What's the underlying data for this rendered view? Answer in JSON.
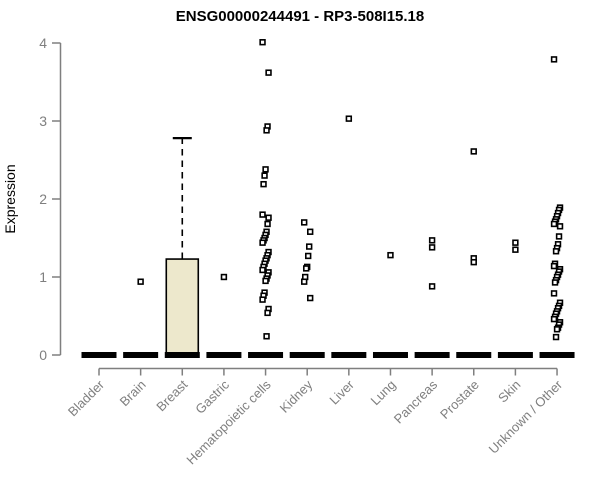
{
  "chart_data": {
    "type": "boxplot",
    "title": "ENSG00000244491 - RP3-508I15.18",
    "ylabel": "Expression",
    "xlabel": "",
    "ylim": [
      0,
      4
    ],
    "yticks": [
      0,
      1,
      2,
      3,
      4
    ],
    "grid": false,
    "legend": "none",
    "axis_color": "#7F7F7F",
    "data_color": "#000000",
    "box_fill": "#EDE8CC",
    "categories": [
      "Bladder",
      "Brain",
      "Breast",
      "Gastric",
      "Hematopoietic cells",
      "Kidney",
      "Liver",
      "Lung",
      "Pancreas",
      "Prostate",
      "Skin",
      "Unknown / Other"
    ],
    "series": [
      {
        "category": "Bladder",
        "q1": 0,
        "median": 0,
        "q3": 0,
        "whisker_low": 0,
        "whisker_high": 0,
        "points": []
      },
      {
        "category": "Brain",
        "q1": 0,
        "median": 0,
        "q3": 0,
        "whisker_low": 0,
        "whisker_high": 0,
        "points": [
          0.94
        ]
      },
      {
        "category": "Breast",
        "q1": 0,
        "median": 0,
        "q3": 1.23,
        "whisker_low": 0,
        "whisker_high": 2.78,
        "points": []
      },
      {
        "category": "Gastric",
        "q1": 0,
        "median": 0,
        "q3": 0,
        "whisker_low": 0,
        "whisker_high": 0,
        "points": [
          1.0
        ]
      },
      {
        "category": "Hematopoietic cells",
        "q1": 0,
        "median": 0,
        "q3": 0,
        "whisker_low": 0,
        "whisker_high": 0,
        "points": [
          4.01,
          3.62,
          2.93,
          2.88,
          2.38,
          2.3,
          2.19,
          1.8,
          1.76,
          1.68,
          1.58,
          1.54,
          1.5,
          1.47,
          1.44,
          1.32,
          1.28,
          1.24,
          1.21,
          1.17,
          1.13,
          1.09,
          1.06,
          1.02,
          0.98,
          0.95,
          0.8,
          0.76,
          0.71,
          0.59,
          0.54,
          0.24
        ]
      },
      {
        "category": "Kidney",
        "q1": 0,
        "median": 0,
        "q3": 0,
        "whisker_low": 0,
        "whisker_high": 0,
        "points": [
          1.7,
          1.58,
          1.39,
          1.27,
          1.13,
          1.11,
          1.0,
          0.94,
          0.73
        ]
      },
      {
        "category": "Liver",
        "q1": 0,
        "median": 0,
        "q3": 0,
        "whisker_low": 0,
        "whisker_high": 0,
        "points": [
          3.03
        ]
      },
      {
        "category": "Lung",
        "q1": 0,
        "median": 0,
        "q3": 0,
        "whisker_low": 0,
        "whisker_high": 0,
        "points": [
          1.28
        ]
      },
      {
        "category": "Pancreas",
        "q1": 0,
        "median": 0,
        "q3": 0,
        "whisker_low": 0,
        "whisker_high": 0,
        "points": [
          1.47,
          1.38,
          0.88
        ]
      },
      {
        "category": "Prostate",
        "q1": 0,
        "median": 0,
        "q3": 0,
        "whisker_low": 0,
        "whisker_high": 0,
        "points": [
          2.61,
          1.24,
          1.19
        ]
      },
      {
        "category": "Skin",
        "q1": 0,
        "median": 0,
        "q3": 0,
        "whisker_low": 0,
        "whisker_high": 0,
        "points": [
          1.44,
          1.35
        ]
      },
      {
        "category": "Unknown / Other",
        "q1": 0,
        "median": 0,
        "q3": 0,
        "whisker_low": 0,
        "whisker_high": 0,
        "points": [
          3.79,
          1.89,
          1.86,
          1.82,
          1.78,
          1.74,
          1.71,
          1.68,
          1.65,
          1.52,
          1.42,
          1.37,
          1.33,
          1.17,
          1.14,
          1.1,
          1.07,
          1.03,
          1.0,
          0.96,
          0.93,
          0.79,
          0.67,
          0.63,
          0.6,
          0.56,
          0.53,
          0.49,
          0.46,
          0.42,
          0.39,
          0.35,
          0.33,
          0.23
        ]
      }
    ]
  }
}
